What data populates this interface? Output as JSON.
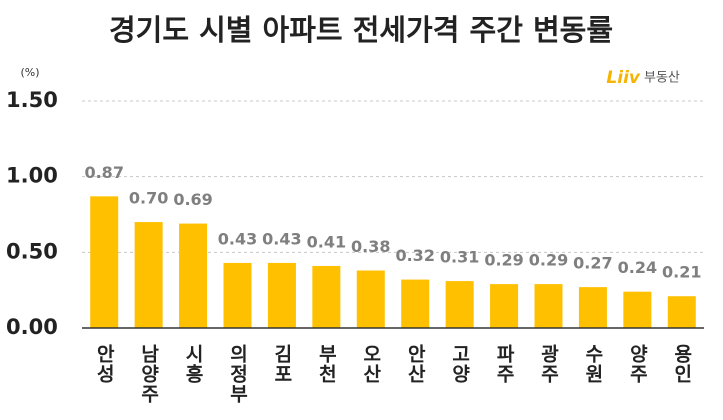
{
  "chart_data": {
    "type": "bar",
    "title": "경기도 시별 아파트 전세가격 주간 변동률",
    "ylabel": "(%)",
    "logo": {
      "brand": "Liiv",
      "text": "부동산"
    },
    "categories": [
      "안성",
      "남양주",
      "시흥",
      "의정부",
      "김포",
      "부천",
      "오산",
      "안산",
      "고양",
      "파주",
      "광주",
      "수원",
      "양주",
      "용인"
    ],
    "values": [
      0.87,
      0.7,
      0.69,
      0.43,
      0.43,
      0.41,
      0.38,
      0.32,
      0.31,
      0.29,
      0.29,
      0.27,
      0.24,
      0.21
    ],
    "value_labels": [
      "0.87",
      "0.70",
      "0.69",
      "0.43",
      "0.43",
      "0.41",
      "0.38",
      "0.32",
      "0.31",
      "0.29",
      "0.29",
      "0.27",
      "0.24",
      "0.21"
    ],
    "color": "#ffc000",
    "ylim": [
      0,
      1.5
    ],
    "yticks": [
      {
        "value": 0,
        "label": "0.00"
      },
      {
        "value": 0.5,
        "label": "0.50"
      },
      {
        "value": 1,
        "label": "1.00"
      },
      {
        "value": 1.5,
        "label": "1.50"
      }
    ],
    "grid": true
  }
}
